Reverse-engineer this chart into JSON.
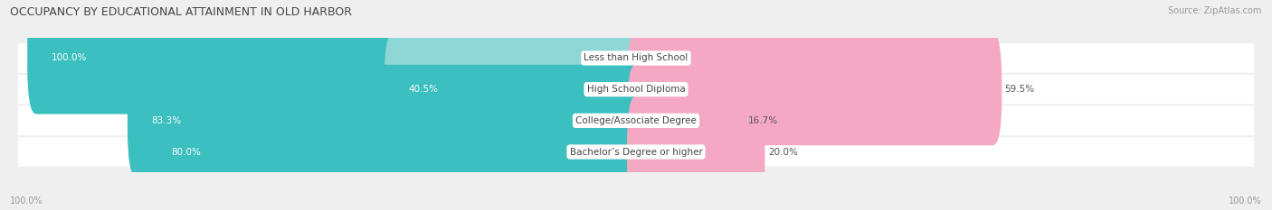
{
  "title": "OCCUPANCY BY EDUCATIONAL ATTAINMENT IN OLD HARBOR",
  "source": "Source: ZipAtlas.com",
  "categories": [
    "Less than High School",
    "High School Diploma",
    "College/Associate Degree",
    "Bachelor’s Degree or higher"
  ],
  "owner_values": [
    100.0,
    40.5,
    83.3,
    80.0
  ],
  "renter_values": [
    0.0,
    59.5,
    16.7,
    20.0
  ],
  "owner_color_dark": "#3bbfbf",
  "owner_color_light": "#8fd6d6",
  "renter_color_dark": "#f06a9a",
  "renter_color_light": "#f4a8c4",
  "bg_color": "#efefef",
  "row_bg_color": "#ffffff",
  "title_fontsize": 9,
  "label_fontsize": 7.5,
  "value_fontsize": 7.5,
  "source_fontsize": 7,
  "legend_fontsize": 8,
  "owner_threshold": 60,
  "axis_label_left": "100.0%",
  "axis_label_right": "100.0%"
}
